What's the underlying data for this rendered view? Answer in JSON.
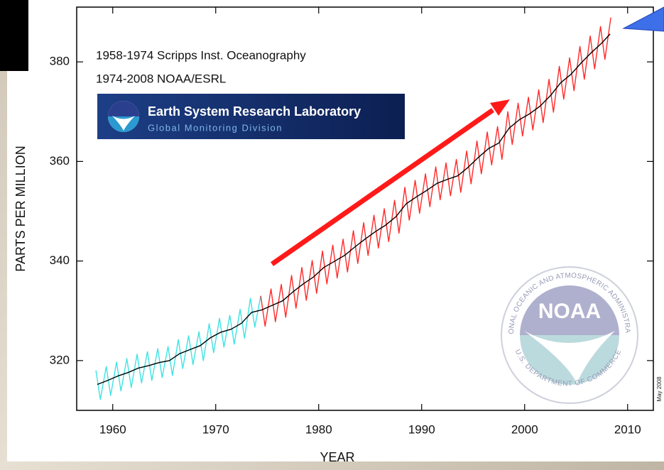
{
  "chart_data": {
    "type": "line",
    "xlabel": "YEAR",
    "ylabel": "PARTS PER MILLION",
    "annotations": [
      "1958-1974 Scripps Inst. Oceanography",
      "1974-2008 NOAA/ESRL",
      "Earth System Research Laboratory",
      "Global Monitoring Division",
      "NOAA",
      "NATIONAL OCEANIC AND ATMOSPHERIC ADMINISTRATION",
      "U.S. DEPARTMENT OF COMMERCE",
      "May 2008"
    ],
    "xlim": [
      1956.5,
      2012.5
    ],
    "ylim": [
      310,
      391
    ],
    "xticks": [
      1960,
      1970,
      1980,
      1990,
      2000,
      2010
    ],
    "yticks": [
      320,
      340,
      360,
      380
    ],
    "series": [
      {
        "color": "#3fe3e3",
        "x": [
          1958.37,
          1958.8,
          1959.37,
          1959.8,
          1960.37,
          1960.8,
          1961.37,
          1961.8,
          1962.37,
          1962.8,
          1963.37,
          1963.8,
          1964.37,
          1964.8,
          1965.37,
          1965.8,
          1966.37,
          1966.8,
          1967.37,
          1967.8,
          1968.37,
          1968.8,
          1969.37,
          1969.8,
          1970.37,
          1970.8,
          1971.37,
          1971.8,
          1972.37,
          1972.8,
          1973.37,
          1973.8,
          1974.37
        ],
        "values": [
          318.0,
          312.2,
          318.8,
          313.0,
          319.7,
          313.9,
          320.4,
          314.6,
          321.3,
          315.5,
          321.8,
          316.0,
          322.4,
          316.6,
          322.8,
          317.0,
          324.2,
          318.4,
          325.0,
          319.2,
          325.8,
          320.0,
          327.4,
          321.6,
          328.5,
          322.7,
          329.1,
          323.3,
          330.3,
          324.5,
          332.5,
          326.7,
          333.0
        ]
      },
      {
        "color": "#ff2a2a",
        "x": [
          1974.37,
          1974.8,
          1975.37,
          1975.8,
          1976.37,
          1976.8,
          1977.37,
          1977.8,
          1978.37,
          1978.8,
          1979.37,
          1979.8,
          1980.37,
          1980.8,
          1981.37,
          1981.8,
          1982.37,
          1982.8,
          1983.37,
          1983.8,
          1984.37,
          1984.8,
          1985.37,
          1985.8,
          1986.37,
          1986.8,
          1987.37,
          1987.8,
          1988.37,
          1988.8,
          1989.37,
          1989.8,
          1990.37,
          1990.8,
          1991.37,
          1991.8,
          1992.37,
          1992.8,
          1993.37,
          1993.8,
          1994.37,
          1994.8,
          1995.37,
          1995.8,
          1996.37,
          1996.8,
          1997.37,
          1997.8,
          1998.37,
          1998.8,
          1999.37,
          1999.8,
          2000.37,
          2000.8,
          2001.37,
          2001.8,
          2002.37,
          2002.8,
          2003.37,
          2003.8,
          2004.37,
          2004.8,
          2005.37,
          2005.8,
          2006.37,
          2006.8,
          2007.37,
          2007.8,
          2008.37
        ],
        "values": [
          333.0,
          326.9,
          334.4,
          327.8,
          335.3,
          328.7,
          337.1,
          330.5,
          338.7,
          332.1,
          340.1,
          333.5,
          342.0,
          335.4,
          343.2,
          336.6,
          344.4,
          337.8,
          346.1,
          339.5,
          347.7,
          341.1,
          349.2,
          342.6,
          350.5,
          343.9,
          352.2,
          345.6,
          354.8,
          348.2,
          356.2,
          349.6,
          357.5,
          350.9,
          358.9,
          352.3,
          359.7,
          353.1,
          360.4,
          353.8,
          362.1,
          355.5,
          364.1,
          357.5,
          365.9,
          359.3,
          367.0,
          360.4,
          370.0,
          363.4,
          371.7,
          365.1,
          372.9,
          366.3,
          374.4,
          367.8,
          376.5,
          369.9,
          379.1,
          372.5,
          380.8,
          374.2,
          383.1,
          376.5,
          385.2,
          378.6,
          387.1,
          380.5,
          388.9
        ]
      },
      {
        "color": "#000000",
        "x": [
          1958.5,
          1959.5,
          1960.5,
          1961.5,
          1962.5,
          1963.5,
          1964.5,
          1965.5,
          1966.5,
          1967.5,
          1968.5,
          1969.5,
          1970.5,
          1971.5,
          1972.5,
          1973.5,
          1974.5,
          1975.5,
          1976.5,
          1977.5,
          1978.5,
          1979.5,
          1980.5,
          1981.5,
          1982.5,
          1983.5,
          1984.5,
          1985.5,
          1986.5,
          1987.5,
          1988.5,
          1989.5,
          1990.5,
          1991.5,
          1992.5,
          1993.5,
          1994.5,
          1995.5,
          1996.5,
          1997.5,
          1998.5,
          1999.5,
          2000.5,
          2001.5,
          2002.5,
          2003.5,
          2004.5,
          2005.5,
          2006.5,
          2007.5,
          2008.3
        ],
        "values": [
          315.2,
          316.0,
          316.9,
          317.6,
          318.5,
          319.0,
          319.6,
          320.0,
          321.4,
          322.2,
          323.0,
          324.6,
          325.7,
          326.3,
          327.5,
          329.7,
          330.2,
          331.1,
          332.0,
          333.8,
          335.4,
          336.8,
          338.7,
          339.9,
          341.1,
          342.8,
          344.4,
          345.9,
          347.2,
          348.9,
          351.5,
          352.9,
          354.2,
          355.6,
          356.4,
          357.1,
          358.8,
          360.8,
          362.6,
          363.7,
          366.7,
          368.4,
          369.6,
          371.1,
          373.2,
          375.8,
          377.5,
          379.8,
          381.9,
          383.8,
          385.6
        ]
      }
    ]
  }
}
